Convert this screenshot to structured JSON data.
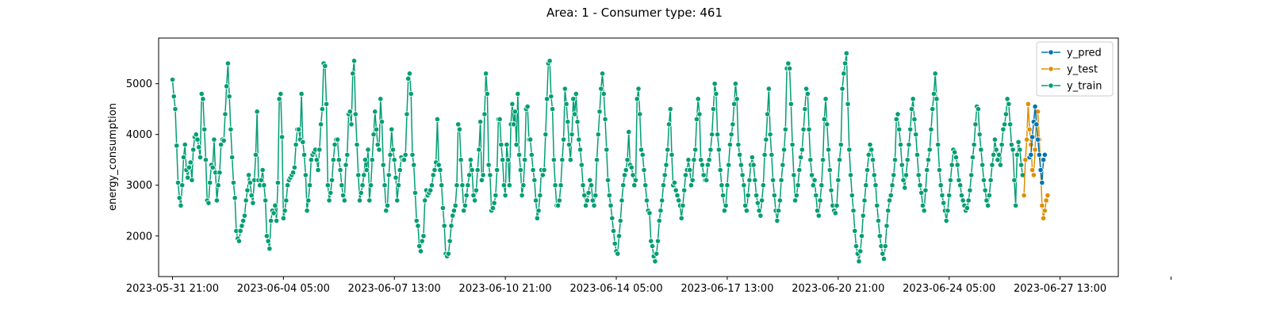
{
  "chart_data": {
    "type": "line",
    "title": "Area: 1 - Consumer type: 461",
    "xlabel": "",
    "ylabel": "energy_consumption",
    "x_tick_labels": [
      "2023-05-31 21:00",
      "2023-06-04 05:00",
      "2023-06-07 13:00",
      "2023-06-10 21:00",
      "2023-06-14 05:00",
      "2023-06-17 13:00",
      "2023-06-20 21:00",
      "2023-06-24 05:00",
      "2023-06-27 13:00",
      ""
    ],
    "x_start": "2023-05-31 21:00",
    "x_end": "2023-07-01 03:00",
    "ylim": [
      1200,
      5900
    ],
    "y_ticks": [
      2000,
      3000,
      4000,
      5000
    ],
    "grid": false,
    "legend_position": "top-right",
    "series": [
      {
        "name": "y_pred",
        "color": "#0173b2",
        "values": [
          3550,
          3600,
          3950,
          4250,
          4550,
          4200,
          3900,
          3600,
          3300,
          3050,
          3500,
          3600
        ]
      },
      {
        "name": "y_test",
        "color": "#de8f05",
        "values": [
          2800,
          3500,
          3900,
          4600,
          4100,
          3800,
          3300,
          3200,
          3700,
          4450,
          4450,
          3900,
          3300,
          2600,
          2350,
          2500,
          2700,
          2800
        ]
      },
      {
        "name": "y_train",
        "color": "#029e73",
        "values": [
          5080,
          4750,
          4500,
          3780,
          3050,
          2750,
          2600,
          3000,
          3550,
          3800,
          3300,
          3150,
          3350,
          3450,
          3100,
          3700,
          3950,
          4000,
          3900,
          3750,
          3550,
          4800,
          4700,
          4100,
          3500,
          2700,
          2650,
          3050,
          3400,
          3350,
          3900,
          3250,
          2700,
          3000,
          3250,
          3800,
          3900,
          3880,
          4400,
          4950,
          5400,
          4750,
          4100,
          3550,
          3050,
          2750,
          2100,
          1950,
          1900,
          2100,
          2200,
          2300,
          2400,
          2700,
          2900,
          3200,
          3050,
          2800,
          2650,
          3100,
          3600,
          4450,
          3100,
          3000,
          3100,
          3300,
          3000,
          2700,
          2000,
          1900,
          1750,
          2300,
          2500,
          2450,
          2600,
          2300,
          3050,
          4700,
          4800,
          3950,
          2350,
          2500,
          2700,
          3000,
          3100,
          3150,
          3200,
          3250,
          3350,
          3800,
          4100,
          4100,
          3900,
          4800,
          3850,
          3600,
          3200,
          2500,
          2700,
          3000,
          3500,
          3600,
          3650,
          3700,
          3500,
          3300,
          3700,
          4200,
          4500,
          5400,
          5350,
          4600,
          3000,
          2700,
          2850,
          3100,
          3500,
          3800,
          3900,
          3900,
          3500,
          3300,
          3000,
          2800,
          2700,
          3400,
          3600,
          4400,
          4450,
          4200,
          5200,
          5450,
          4400,
          3800,
          3200,
          2700,
          2850,
          3000,
          3200,
          3500,
          3300,
          3700,
          2700,
          3000,
          3500,
          4000,
          4450,
          4100,
          3800,
          3700,
          4700,
          4250,
          3400,
          3000,
          2500,
          2600,
          3200,
          3600,
          4100,
          3700,
          3500,
          3150,
          2700,
          3000,
          3300,
          3550,
          3500,
          3500,
          3600,
          4400,
          5100,
          5200,
          4800,
          3600,
          3400,
          2850,
          2300,
          2200,
          1800,
          1700,
          1900,
          2000,
          2700,
          2900,
          2800,
          2850,
          2900,
          3000,
          3200,
          3300,
          3450,
          4300,
          3400,
          3300,
          3000,
          2550,
          2200,
          1650,
          1600,
          1650,
          1900,
          2200,
          2400,
          2500,
          2600,
          3000,
          4200,
          4100,
          3500,
          3000,
          2500,
          2600,
          2800,
          3000,
          3200,
          3500,
          3300,
          2800,
          2700,
          2900,
          3300,
          3700,
          4250,
          3100,
          3200,
          4400,
          5200,
          4800,
          3400,
          3200,
          2500,
          2550,
          2650,
          2800,
          3300,
          4300,
          4300,
          3800,
          3500,
          3000,
          2800,
          3800,
          3500,
          3000,
          4200,
          4600,
          4200,
          4450,
          3800,
          4800,
          3600,
          3300,
          2800,
          3000,
          3500,
          4500,
          4550,
          3900,
          3900,
          3600,
          3300,
          3100,
          2700,
          2350,
          2500,
          2800,
          3300,
          3200,
          3300,
          4000,
          4700,
          5400,
          5450,
          4750,
          4500,
          3500,
          3000,
          2600,
          2600,
          2700,
          3000,
          3500,
          3900,
          4900,
          4600,
          4250,
          3800,
          3500,
          4000,
          4700,
          4400,
          4800,
          4250,
          3900,
          3700,
          3400,
          3000,
          2800,
          2600,
          2700,
          2850,
          3100,
          3000,
          2700,
          2600,
          2800,
          3500,
          4000,
          4450,
          4900,
          5200,
          4800,
          4300,
          3700,
          3100,
          2800,
          2600,
          2350,
          2100,
          1850,
          1700,
          1650,
          2000,
          2300,
          2700,
          3000,
          3200,
          3300,
          3500,
          4050,
          3400,
          3350,
          3200,
          3000,
          3100,
          4700,
          4900,
          4400,
          3700,
          3600,
          3300,
          3000,
          2700,
          2500,
          2450,
          1900,
          1800,
          1600,
          1500,
          1650,
          1900,
          2300,
          2500,
          2700,
          3000,
          3200,
          3400,
          3700,
          4200,
          4500,
          3600,
          3000,
          3050,
          2900,
          2800,
          2700,
          2600,
          2350,
          2600,
          2900,
          3200,
          3300,
          3500,
          3300,
          3000,
          3100,
          3500,
          3700,
          4300,
          4700,
          4400,
          3500,
          3400,
          3200,
          3100,
          3100,
          3400,
          3500,
          3700,
          4000,
          4500,
          5000,
          4800,
          4000,
          3700,
          3300,
          3000,
          2800,
          2500,
          2600,
          3000,
          3400,
          3800,
          4000,
          4200,
          4600,
          5000,
          4700,
          3800,
          3600,
          3400,
          3200,
          3000,
          2600,
          2500,
          2800,
          3100,
          3400,
          3550,
          3400,
          3100,
          2800,
          2650,
          2500,
          2400,
          2700,
          3000,
          3600,
          3900,
          4400,
          4900,
          4000,
          3600,
          3100,
          2800,
          2500,
          2300,
          2500,
          2700,
          3100,
          3400,
          3700,
          4100,
          5300,
          5400,
          5300,
          4600,
          3800,
          3200,
          2700,
          2800,
          3000,
          3300,
          3550,
          3700,
          4100,
          4500,
          4900,
          4800,
          4100,
          3500,
          3200,
          3000,
          3100,
          2800,
          2500,
          2400,
          2700,
          3000,
          3500,
          4300,
          4700,
          4200,
          3700,
          3300,
          2900,
          2600,
          2500,
          2450,
          2600,
          3100,
          3500,
          3800,
          4900,
          5200,
          5400,
          5600,
          4600,
          3700,
          3200,
          2800,
          2500,
          2100,
          1800,
          1650,
          1500,
          1700,
          2000,
          2400,
          2700,
          3000,
          3300,
          3600,
          3800,
          3700,
          3500,
          3200,
          3000,
          2600,
          2300,
          2000,
          1800,
          1650,
          1550,
          1800,
          2200,
          2500,
          2700,
          2800,
          3000,
          3200,
          3500,
          4300,
          4400,
          4100,
          3800,
          3400,
          3100,
          2950,
          3200,
          3500,
          3800,
          4100,
          4500,
          4700,
          4300,
          4000,
          3600,
          3200,
          3000,
          2850,
          2600,
          2500,
          2900,
          3300,
          3500,
          3700,
          4100,
          4500,
          4800,
          5200,
          4700,
          3800,
          3300,
          3000,
          2800,
          2650,
          2500,
          2300,
          2500,
          2800,
          3100,
          3400,
          3700,
          3650,
          3550,
          3400,
          3100,
          3000,
          2800,
          2700,
          2600,
          2500,
          2550,
          2700,
          2900,
          3200,
          3550,
          3800,
          4200,
          4550,
          4500,
          4000,
          3700,
          3400,
          3100,
          2900,
          2700,
          2600,
          2800,
          3100,
          3400,
          3600,
          3900,
          3700,
          3500,
          3600,
          3400,
          3800,
          4100,
          4200,
          4400,
          4700,
          4600,
          4200,
          3800,
          3700,
          3100,
          2600,
          3600,
          3850,
          3700,
          3400,
          3200
        ]
      }
    ]
  }
}
